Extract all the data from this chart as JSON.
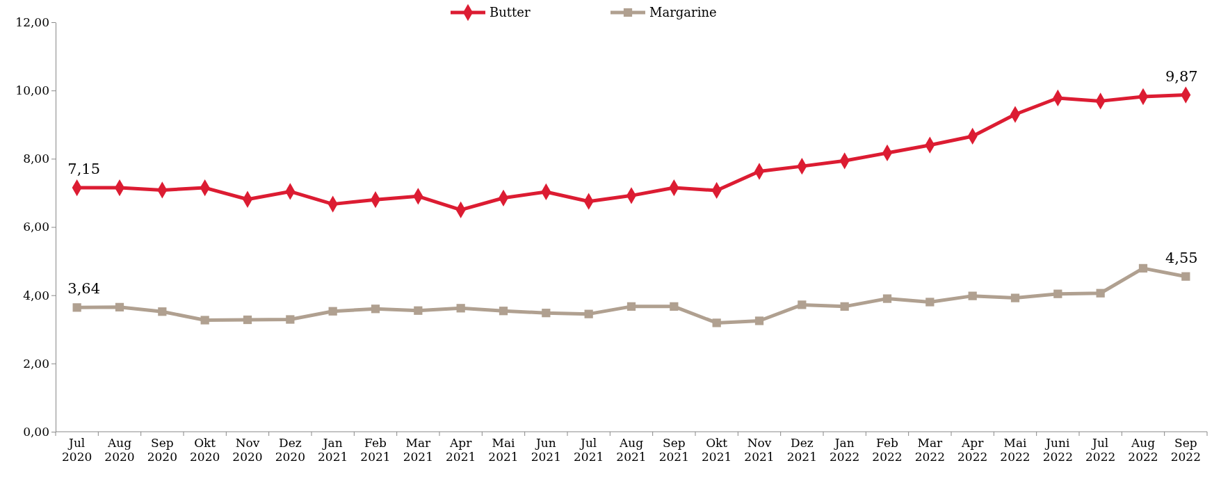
{
  "chart_data": {
    "type": "line",
    "categories": [
      "Jul 2020",
      "Aug 2020",
      "Sep 2020",
      "Okt 2020",
      "Nov 2020",
      "Dez 2020",
      "Jan 2021",
      "Feb 2021",
      "Mar 2021",
      "Apr 2021",
      "Mai 2021",
      "Jun 2021",
      "Jul 2021",
      "Aug 2021",
      "Sep 2021",
      "Okt 2021",
      "Nov 2021",
      "Dez 2021",
      "Jan 2022",
      "Feb 2022",
      "Mar 2022",
      "Apr 2022",
      "Mai 2022",
      "Juni 2022",
      "Jul 2022",
      "Aug 2022",
      "Sep 2022"
    ],
    "series": [
      {
        "name": "Butter",
        "color": "#dc1c32",
        "marker": "diamond",
        "values": [
          7.15,
          7.15,
          7.08,
          7.15,
          6.81,
          7.04,
          6.67,
          6.8,
          6.9,
          6.5,
          6.85,
          7.03,
          6.75,
          6.92,
          7.15,
          7.07,
          7.63,
          7.78,
          7.94,
          8.17,
          8.4,
          8.66,
          9.3,
          9.78,
          9.69,
          9.82,
          9.87
        ],
        "value_labels": [
          "7,15",
          null,
          null,
          null,
          null,
          null,
          null,
          null,
          null,
          null,
          null,
          null,
          null,
          null,
          null,
          null,
          null,
          null,
          null,
          null,
          null,
          null,
          null,
          null,
          null,
          null,
          "9,87"
        ]
      },
      {
        "name": "Margarine",
        "color": "#b0a090",
        "marker": "square",
        "values": [
          3.64,
          3.65,
          3.52,
          3.27,
          3.28,
          3.29,
          3.53,
          3.6,
          3.55,
          3.62,
          3.54,
          3.48,
          3.45,
          3.67,
          3.67,
          3.19,
          3.25,
          3.72,
          3.67,
          3.9,
          3.8,
          3.98,
          3.92,
          4.04,
          4.06,
          4.79,
          4.55
        ],
        "value_labels": [
          "3,64",
          null,
          null,
          null,
          null,
          null,
          null,
          null,
          null,
          null,
          null,
          null,
          null,
          null,
          null,
          null,
          null,
          null,
          null,
          null,
          null,
          null,
          null,
          null,
          null,
          null,
          "4,55"
        ]
      }
    ],
    "ylim": [
      0,
      12
    ],
    "yticks": [
      {
        "value": 0,
        "label": "0,00"
      },
      {
        "value": 2,
        "label": "2,00"
      },
      {
        "value": 4,
        "label": "4,00"
      },
      {
        "value": 6,
        "label": "6,00"
      },
      {
        "value": 8,
        "label": "8,00"
      },
      {
        "value": 10,
        "label": "10,00"
      },
      {
        "value": 12,
        "label": "12,00"
      }
    ],
    "grid": false,
    "legend": "top",
    "line_style": "solid"
  }
}
